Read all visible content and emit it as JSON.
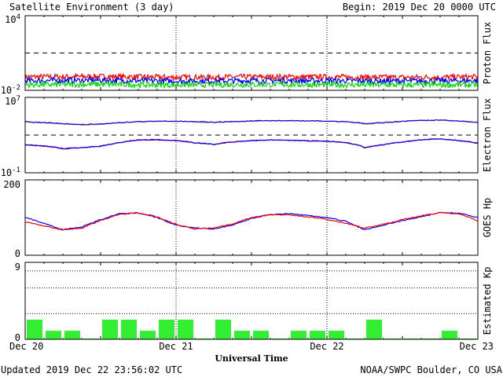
{
  "header": {
    "title": "Satellite Environment (3 day)",
    "begin": "Begin:  2019 Dec 20 0000 UTC"
  },
  "footer": {
    "updated": "Updated 2019 Dec 22 23:56:02 UTC",
    "credit": "NOAA/SWPC Boulder, CO USA",
    "xlabel": "Universal Time"
  },
  "chart_data": [
    {
      "type": "line",
      "title": "",
      "ylabel": "Proton Flux",
      "yscale": "log",
      "ylim": [
        0.01,
        10000
      ],
      "ytick_labels": {
        "top_base": "10",
        "top_exp": "4",
        "bottom_base": "10",
        "bottom_exp": "-2"
      },
      "threshold": 10,
      "x": [
        0,
        12,
        24,
        36,
        48,
        60,
        72
      ],
      "series": [
        {
          "color": "#ff0000",
          "values": [
            0.12,
            0.13,
            0.11,
            0.12,
            0.12,
            0.11,
            0.12
          ]
        },
        {
          "color": "#0000ff",
          "values": [
            0.06,
            0.065,
            0.055,
            0.06,
            0.06,
            0.055,
            0.06
          ]
        },
        {
          "color": "#00dd00",
          "values": [
            0.028,
            0.03,
            0.027,
            0.029,
            0.028,
            0.027,
            0.028
          ]
        }
      ]
    },
    {
      "type": "line",
      "title": "",
      "ylabel": "Electron Flux",
      "yscale": "log",
      "ylim": [
        0.1,
        10000000
      ],
      "ytick_labels": {
        "top_base": "10",
        "top_exp": "7",
        "bottom_base": "10",
        "bottom_exp": "-1"
      },
      "threshold": 1000,
      "x": [
        0,
        3,
        6,
        9,
        12,
        15,
        18,
        21,
        24,
        27,
        30,
        33,
        36,
        39,
        42,
        45,
        48,
        51,
        54,
        57,
        60,
        63,
        66,
        69,
        72
      ],
      "series": [
        {
          "color": "#ff8800",
          "values": [
            25000,
            20000,
            15000,
            12000,
            14000,
            20000,
            26000,
            28000,
            30000,
            25000,
            22000,
            26000,
            30000,
            33000,
            33000,
            31000,
            29000,
            26000,
            15000,
            20000,
            28000,
            35000,
            38000,
            30000,
            22000
          ]
        },
        {
          "color": "#0000ff",
          "values": [
            26000,
            21000,
            16000,
            13000,
            15000,
            21000,
            27000,
            29000,
            31000,
            26000,
            23000,
            27000,
            31000,
            34000,
            34000,
            32000,
            30000,
            27000,
            16000,
            21000,
            29000,
            36000,
            39000,
            31000,
            23000
          ]
        },
        {
          "color": "#ff0000",
          "values": [
            90,
            70,
            35,
            45,
            65,
            150,
            300,
            310,
            260,
            150,
            100,
            180,
            250,
            300,
            280,
            240,
            220,
            150,
            45,
            90,
            180,
            300,
            400,
            250,
            130
          ]
        },
        {
          "color": "#0000ff",
          "values": [
            95,
            72,
            37,
            47,
            68,
            155,
            310,
            320,
            270,
            155,
            105,
            185,
            260,
            310,
            290,
            250,
            230,
            155,
            48,
            95,
            185,
            310,
            410,
            260,
            135
          ]
        }
      ]
    },
    {
      "type": "line",
      "title": "",
      "ylabel": "GOES Hp",
      "ylim": [
        0,
        200
      ],
      "yticks": [
        0,
        200
      ],
      "x": [
        0,
        3,
        6,
        9,
        12,
        15,
        18,
        21,
        24,
        27,
        30,
        33,
        36,
        39,
        42,
        45,
        48,
        51,
        54,
        57,
        60,
        63,
        66,
        69,
        72
      ],
      "series": [
        {
          "color": "#0000ff",
          "values": [
            100,
            85,
            68,
            75,
            95,
            110,
            112,
            100,
            80,
            72,
            70,
            80,
            98,
            108,
            110,
            105,
            100,
            90,
            68,
            80,
            92,
            102,
            113,
            112,
            100
          ]
        },
        {
          "color": "#ff0000",
          "values": [
            88,
            78,
            67,
            72,
            92,
            108,
            113,
            102,
            82,
            70,
            73,
            83,
            100,
            108,
            107,
            102,
            95,
            85,
            72,
            82,
            95,
            105,
            113,
            110,
            92
          ]
        }
      ]
    },
    {
      "type": "bar",
      "title": "",
      "ylabel": "Estimated Kp",
      "ylim": [
        0,
        9
      ],
      "yticks": [
        0,
        9
      ],
      "bar_hours": 3,
      "values": [
        2.3,
        1.0,
        1.0,
        0.1,
        2.3,
        2.3,
        1.0,
        2.3,
        2.3,
        0.1,
        2.3,
        1.0,
        1.0,
        0.1,
        1.0,
        1.0,
        1.0,
        0.1,
        2.3,
        0.1,
        0.1,
        0.1,
        1.0,
        0.1
      ],
      "color": "#33ee33"
    }
  ],
  "xaxis": {
    "ticks": [
      0,
      24,
      48,
      72
    ],
    "tick_labels": [
      "Dec 20",
      "Dec 21",
      "Dec 22",
      "Dec 23"
    ],
    "range_hours": [
      0,
      72
    ]
  }
}
